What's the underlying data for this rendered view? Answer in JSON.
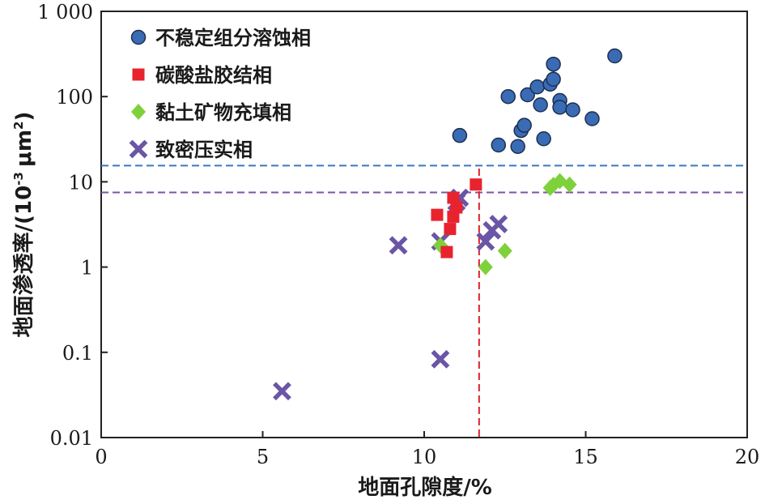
{
  "chart_data": {
    "type": "scatter",
    "xlabel": "地面孔隙度/%",
    "ylabel_main": "地面渗透率/(10",
    "ylabel_exp": "-3",
    "ylabel_unit": "μm",
    "ylabel_unit_exp": "2",
    "ylabel_close": ")",
    "xlim": [
      0,
      20
    ],
    "ylim": [
      0.01,
      1000
    ],
    "yscale": "log",
    "x_ticks": [
      0,
      5,
      10,
      15,
      20
    ],
    "x_tick_labels": [
      "0",
      "5",
      "10",
      "15",
      "20"
    ],
    "y_ticks": [
      0.01,
      0.1,
      1,
      10,
      100,
      1000
    ],
    "y_tick_labels": [
      "0.01",
      "0.1",
      "1",
      "10",
      "100",
      "1 000"
    ],
    "legend_position": "top-left",
    "series": [
      {
        "name": "不稳定组分溶蚀相",
        "marker": "circle",
        "color": "#3a6bb5",
        "points": [
          [
            11.1,
            35
          ],
          [
            12.3,
            27
          ],
          [
            12.6,
            100
          ],
          [
            12.9,
            26
          ],
          [
            13.0,
            40
          ],
          [
            13.1,
            46
          ],
          [
            13.2,
            105
          ],
          [
            13.5,
            130
          ],
          [
            13.6,
            80
          ],
          [
            13.7,
            32
          ],
          [
            13.9,
            140
          ],
          [
            14.0,
            160
          ],
          [
            14.0,
            240
          ],
          [
            14.2,
            90
          ],
          [
            14.2,
            75
          ],
          [
            14.6,
            70
          ],
          [
            15.2,
            55
          ],
          [
            15.9,
            300
          ]
        ]
      },
      {
        "name": "碳酸盐胶结相",
        "marker": "square",
        "color": "#e8232e",
        "points": [
          [
            10.4,
            4.1
          ],
          [
            10.7,
            1.5
          ],
          [
            10.8,
            2.8
          ],
          [
            10.9,
            3.9
          ],
          [
            10.9,
            6.5
          ],
          [
            11.0,
            5.0
          ],
          [
            11.6,
            9.3
          ]
        ]
      },
      {
        "name": "黏土矿物充填相",
        "marker": "diamond",
        "color": "#7fd13b",
        "points": [
          [
            10.5,
            1.8
          ],
          [
            11.9,
            1.0
          ],
          [
            12.5,
            1.55
          ],
          [
            13.9,
            8.5
          ],
          [
            14.0,
            9.2
          ],
          [
            14.2,
            10.2
          ],
          [
            14.5,
            9.3
          ]
        ]
      },
      {
        "name": "致密压实相",
        "marker": "x",
        "color": "#6a55a6",
        "points": [
          [
            5.6,
            0.035
          ],
          [
            9.2,
            1.8
          ],
          [
            10.5,
            2.0
          ],
          [
            10.5,
            0.083
          ],
          [
            11.0,
            5.8
          ],
          [
            11.1,
            6.5
          ],
          [
            11.9,
            2.0
          ],
          [
            12.1,
            2.7
          ],
          [
            12.3,
            3.2
          ]
        ]
      }
    ],
    "reference_lines": [
      {
        "orientation": "horizontal",
        "value": 15.5,
        "color": "#3a78c2",
        "style": "dashed"
      },
      {
        "orientation": "horizontal",
        "value": 7.5,
        "color": "#7a55a5",
        "style": "dashed"
      },
      {
        "orientation": "vertical",
        "value": 11.7,
        "color": "#e0202a",
        "style": "dashed"
      }
    ]
  }
}
